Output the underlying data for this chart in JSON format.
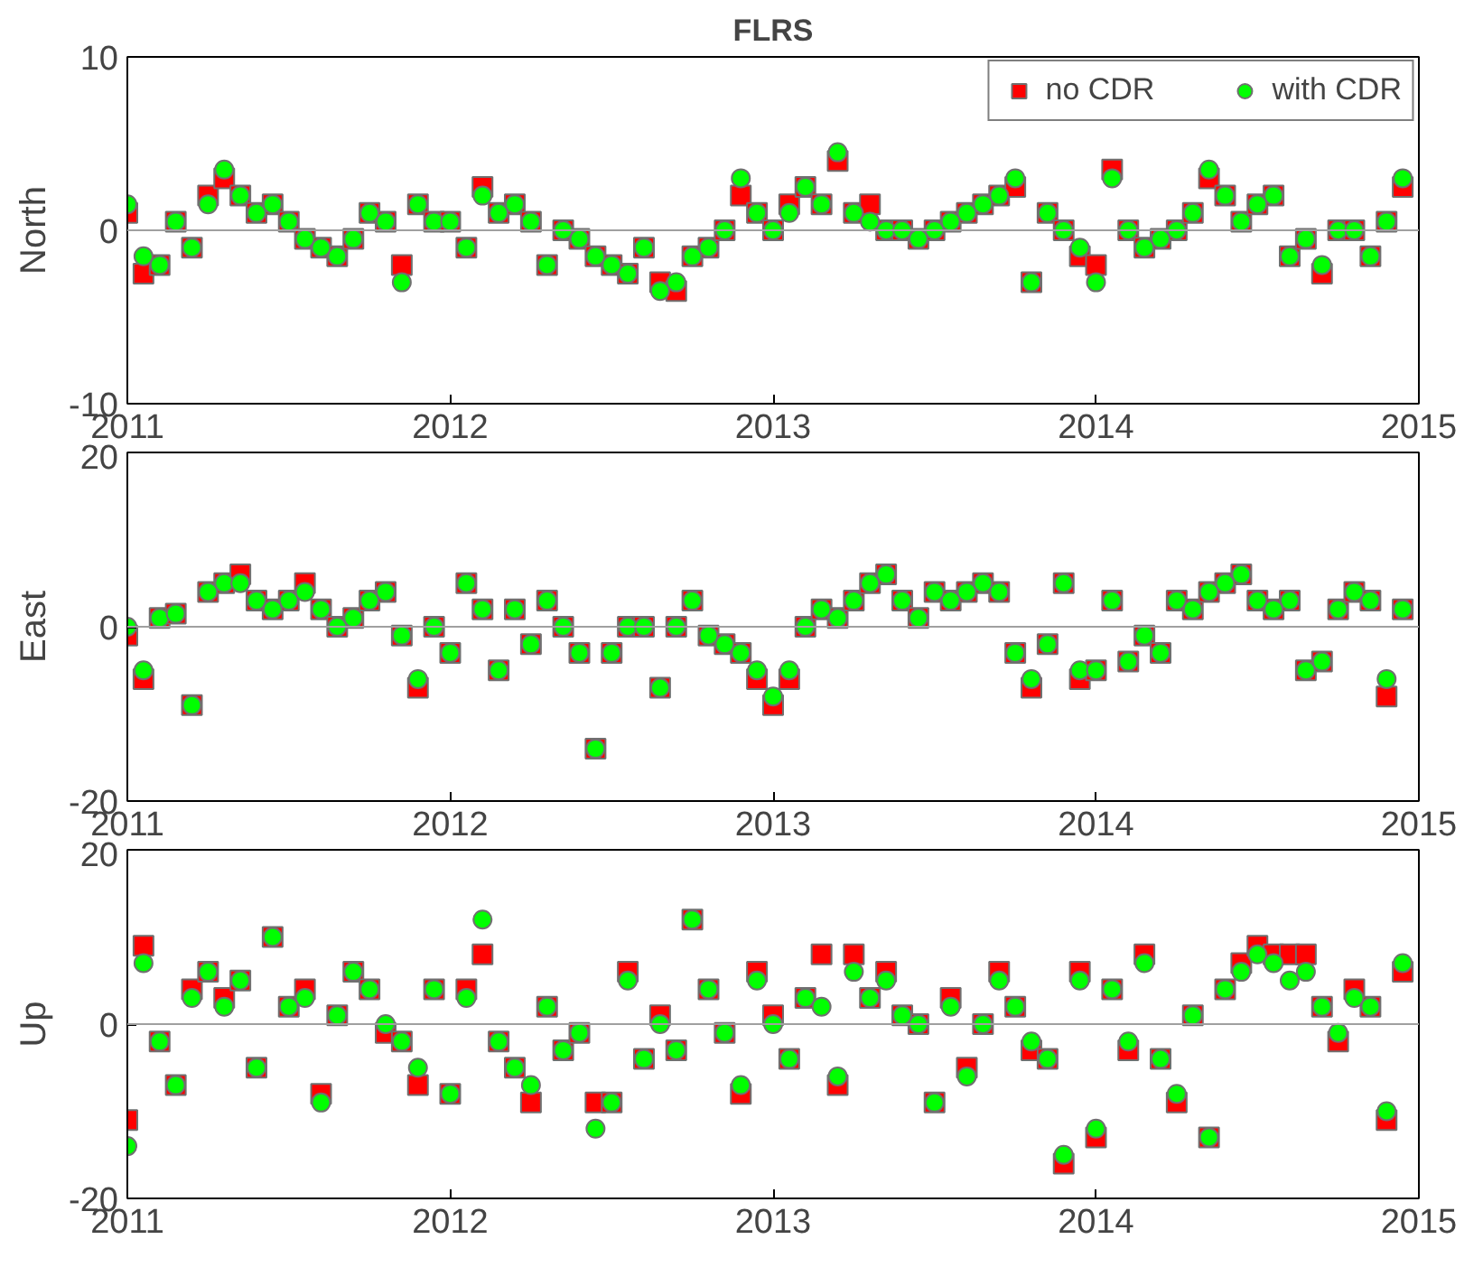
{
  "chart_data": [
    {
      "type": "scatter",
      "title": "FLRS",
      "ylabel": "North",
      "xlim": [
        2011,
        2015
      ],
      "xticks": [
        2011,
        2012,
        2013,
        2014,
        2015
      ],
      "ylim": [
        -10,
        10
      ],
      "yticks": [
        -10,
        0,
        10
      ],
      "legend": "top right",
      "ref_lines": [
        {
          "axis": "y",
          "value": 0,
          "color": "#a0a0a0"
        }
      ],
      "x": [
        2011.0,
        2011.05,
        2011.1,
        2011.15,
        2011.2,
        2011.25,
        2011.3,
        2011.35,
        2011.4,
        2011.45,
        2011.5,
        2011.55,
        2011.6,
        2011.65,
        2011.7,
        2011.75,
        2011.8,
        2011.85,
        2011.9,
        2011.95,
        2012.0,
        2012.05,
        2012.1,
        2012.15,
        2012.2,
        2012.25,
        2012.3,
        2012.35,
        2012.4,
        2012.45,
        2012.5,
        2012.55,
        2012.6,
        2012.65,
        2012.7,
        2012.75,
        2012.8,
        2012.85,
        2012.9,
        2012.95,
        2013.0,
        2013.05,
        2013.1,
        2013.15,
        2013.2,
        2013.25,
        2013.3,
        2013.35,
        2013.4,
        2013.45,
        2013.5,
        2013.55,
        2013.6,
        2013.65,
        2013.7,
        2013.75,
        2013.8,
        2013.85,
        2013.9,
        2013.95,
        2014.0,
        2014.05,
        2014.1,
        2014.15,
        2014.2,
        2014.25,
        2014.3,
        2014.35,
        2014.4,
        2014.45,
        2014.5,
        2014.55,
        2014.6,
        2014.65,
        2014.7,
        2014.75,
        2014.8,
        2014.85,
        2014.9,
        2014.95
      ],
      "series": [
        {
          "name": "no CDR",
          "color": "#ff0000",
          "marker": "square",
          "values": [
            1,
            -2.5,
            -2,
            0.5,
            -1,
            2,
            3,
            2,
            1,
            1.5,
            0.5,
            -0.5,
            -1,
            -1.5,
            -0.5,
            1,
            0.5,
            -2,
            1.5,
            0.5,
            0.5,
            -1,
            2.5,
            1,
            1.5,
            0.5,
            -2,
            0,
            -0.5,
            -1.5,
            -2,
            -2.5,
            -1,
            -3,
            -3.5,
            -1.5,
            -1,
            0,
            2,
            1,
            0,
            1.5,
            2.5,
            1.5,
            4,
            1,
            1.5,
            0,
            0,
            -0.5,
            0,
            0.5,
            1,
            1.5,
            2,
            2.5,
            -3,
            1,
            0,
            -1.5,
            -2,
            3.5,
            0,
            -1,
            -0.5,
            0,
            1,
            3,
            2,
            0.5,
            1.5,
            2,
            -1.5,
            -0.5,
            -2.5,
            0,
            0,
            -1.5,
            0.5,
            2.5
          ]
        },
        {
          "name": "with CDR",
          "color": "#00ff00",
          "marker": "circle",
          "values": [
            1.5,
            -1.5,
            -2,
            0.5,
            -1,
            1.5,
            3.5,
            2,
            1,
            1.5,
            0.5,
            -0.5,
            -1,
            -1.5,
            -0.5,
            1,
            0.5,
            -3,
            1.5,
            0.5,
            0.5,
            -1,
            2,
            1,
            1.5,
            0.5,
            -2,
            0,
            -0.5,
            -1.5,
            -2,
            -2.5,
            -1,
            -3.5,
            -3,
            -1.5,
            -1,
            0,
            3,
            1,
            0,
            1,
            2.5,
            1.5,
            4.5,
            1,
            0.5,
            0,
            0,
            -0.5,
            0,
            0.5,
            1,
            1.5,
            2,
            3,
            -3,
            1,
            0,
            -1,
            -3,
            3,
            0,
            -1,
            -0.5,
            0,
            1,
            3.5,
            2,
            0.5,
            1.5,
            2,
            -1.5,
            -0.5,
            -2,
            0,
            0,
            -1.5,
            0.5,
            3
          ]
        }
      ]
    },
    {
      "type": "scatter",
      "ylabel": "East",
      "xlim": [
        2011,
        2015
      ],
      "xticks": [
        2011,
        2012,
        2013,
        2014,
        2015
      ],
      "ylim": [
        -20,
        20
      ],
      "yticks": [
        -20,
        0,
        20
      ],
      "ref_lines": [
        {
          "axis": "y",
          "value": 0,
          "color": "#a0a0a0"
        }
      ],
      "x": [
        2011.0,
        2011.05,
        2011.1,
        2011.15,
        2011.2,
        2011.25,
        2011.3,
        2011.35,
        2011.4,
        2011.45,
        2011.5,
        2011.55,
        2011.6,
        2011.65,
        2011.7,
        2011.75,
        2011.8,
        2011.85,
        2011.9,
        2011.95,
        2012.0,
        2012.05,
        2012.1,
        2012.15,
        2012.2,
        2012.25,
        2012.3,
        2012.35,
        2012.4,
        2012.45,
        2012.5,
        2012.55,
        2012.6,
        2012.65,
        2012.7,
        2012.75,
        2012.8,
        2012.85,
        2012.9,
        2012.95,
        2013.0,
        2013.05,
        2013.1,
        2013.15,
        2013.2,
        2013.25,
        2013.3,
        2013.35,
        2013.4,
        2013.45,
        2013.5,
        2013.55,
        2013.6,
        2013.65,
        2013.7,
        2013.75,
        2013.8,
        2013.85,
        2013.9,
        2013.95,
        2014.0,
        2014.05,
        2014.1,
        2014.15,
        2014.2,
        2014.25,
        2014.3,
        2014.35,
        2014.4,
        2014.45,
        2014.5,
        2014.55,
        2014.6,
        2014.65,
        2014.7,
        2014.75,
        2014.8,
        2014.85,
        2014.9,
        2014.95
      ],
      "series": [
        {
          "color": "#ff0000",
          "marker": "square",
          "values": [
            -1,
            -6,
            1,
            1.5,
            -9,
            4,
            5,
            6,
            3,
            2,
            3,
            5,
            2,
            0,
            1,
            3,
            4,
            -1,
            -7,
            0,
            -3,
            5,
            2,
            -5,
            2,
            -2,
            3,
            0,
            -3,
            -14,
            -3,
            0,
            0,
            -7,
            0,
            3,
            -1,
            -2,
            -3,
            -6,
            -9,
            -6,
            0,
            2,
            1,
            3,
            5,
            6,
            3,
            1,
            4,
            3,
            4,
            5,
            4,
            -3,
            -7,
            -2,
            5,
            -6,
            -5,
            3,
            -4,
            -1,
            -3,
            3,
            2,
            4,
            5,
            6,
            3,
            2,
            3,
            -5,
            -4,
            2,
            4,
            3,
            -8,
            2
          ]
        },
        {
          "color": "#00ff00",
          "marker": "circle",
          "values": [
            0,
            -5,
            1,
            1.5,
            -9,
            4,
            5,
            5,
            3,
            2,
            3,
            4,
            2,
            0,
            1,
            3,
            4,
            -1,
            -6,
            0,
            -3,
            5,
            2,
            -5,
            2,
            -2,
            3,
            0,
            -3,
            -14,
            -3,
            0,
            0,
            -7,
            0,
            3,
            -1,
            -2,
            -3,
            -5,
            -8,
            -5,
            0,
            2,
            1,
            3,
            5,
            6,
            3,
            1,
            4,
            3,
            4,
            5,
            4,
            -3,
            -6,
            -2,
            5,
            -5,
            -5,
            3,
            -4,
            -1,
            -3,
            3,
            2,
            4,
            5,
            6,
            3,
            2,
            3,
            -5,
            -4,
            2,
            4,
            3,
            -6,
            2
          ]
        }
      ]
    },
    {
      "type": "scatter",
      "ylabel": "Up",
      "xlim": [
        2011,
        2015
      ],
      "xticks": [
        2011,
        2012,
        2013,
        2014,
        2015
      ],
      "ylim": [
        -20,
        20
      ],
      "yticks": [
        -20,
        0,
        20
      ],
      "ref_lines": [
        {
          "axis": "y",
          "value": 0,
          "color": "#a0a0a0"
        }
      ],
      "x": [
        2011.0,
        2011.05,
        2011.1,
        2011.15,
        2011.2,
        2011.25,
        2011.3,
        2011.35,
        2011.4,
        2011.45,
        2011.5,
        2011.55,
        2011.6,
        2011.65,
        2011.7,
        2011.75,
        2011.8,
        2011.85,
        2011.9,
        2011.95,
        2012.0,
        2012.05,
        2012.1,
        2012.15,
        2012.2,
        2012.25,
        2012.3,
        2012.35,
        2012.4,
        2012.45,
        2012.5,
        2012.55,
        2012.6,
        2012.65,
        2012.7,
        2012.75,
        2012.8,
        2012.85,
        2012.9,
        2012.95,
        2013.0,
        2013.05,
        2013.1,
        2013.15,
        2013.2,
        2013.25,
        2013.3,
        2013.35,
        2013.4,
        2013.45,
        2013.5,
        2013.55,
        2013.6,
        2013.65,
        2013.7,
        2013.75,
        2013.8,
        2013.85,
        2013.9,
        2013.95,
        2014.0,
        2014.05,
        2014.1,
        2014.15,
        2014.2,
        2014.25,
        2014.3,
        2014.35,
        2014.4,
        2014.45,
        2014.5,
        2014.55,
        2014.6,
        2014.65,
        2014.7,
        2014.75,
        2014.8,
        2014.85,
        2014.9,
        2014.95
      ],
      "series": [
        {
          "color": "#ff0000",
          "marker": "square",
          "values": [
            -11,
            9,
            -2,
            -7,
            4,
            6,
            3,
            5,
            -5,
            10,
            2,
            4,
            -8,
            1,
            6,
            4,
            -1,
            -2,
            -7,
            4,
            -8,
            4,
            8,
            -2,
            -5,
            -9,
            2,
            -3,
            -1,
            -9,
            -9,
            6,
            -4,
            1,
            -3,
            12,
            4,
            -1,
            -8,
            6,
            1,
            -4,
            3,
            8,
            -7,
            8,
            3,
            6,
            1,
            0,
            -9,
            3,
            -5,
            0,
            6,
            2,
            -3,
            -4,
            -16,
            6,
            -13,
            4,
            -3,
            8,
            -4,
            -9,
            1,
            -13,
            4,
            7,
            9,
            8,
            8,
            8,
            2,
            -2,
            4,
            2,
            -11,
            6
          ]
        },
        {
          "color": "#00ff00",
          "marker": "circle",
          "values": [
            -14,
            7,
            -2,
            -7,
            3,
            6,
            2,
            5,
            -5,
            10,
            2,
            3,
            -9,
            1,
            6,
            4,
            0,
            -2,
            -5,
            4,
            -8,
            3,
            12,
            -2,
            -5,
            -7,
            2,
            -3,
            -1,
            -12,
            -9,
            5,
            -4,
            0,
            -3,
            12,
            4,
            -1,
            -7,
            5,
            0,
            -4,
            3,
            2,
            -6,
            6,
            3,
            5,
            1,
            0,
            -9,
            2,
            -6,
            0,
            5,
            2,
            -2,
            -4,
            -15,
            5,
            -12,
            4,
            -2,
            7,
            -4,
            -8,
            1,
            -13,
            4,
            6,
            8,
            7,
            5,
            6,
            2,
            -1,
            3,
            2,
            -10,
            7
          ]
        }
      ]
    }
  ]
}
